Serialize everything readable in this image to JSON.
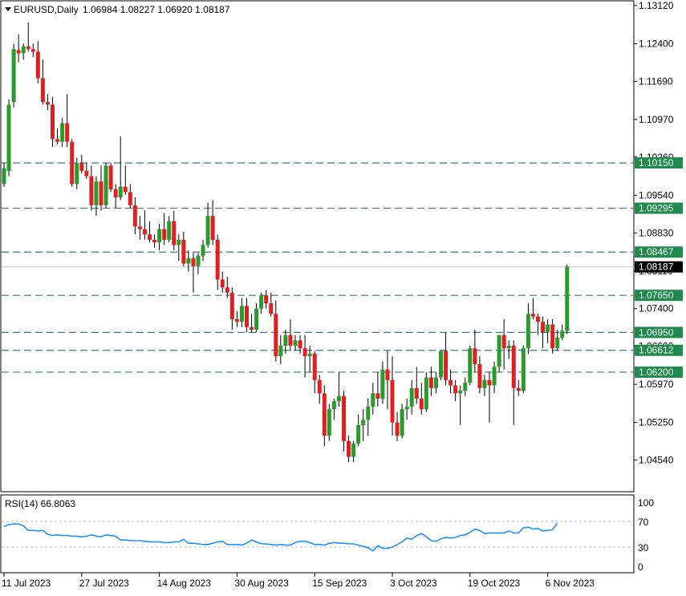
{
  "header": {
    "symbol": "EURUSD,Daily",
    "ohlc": "1.06984 1.08227 1.06920 1.08187"
  },
  "rsi": {
    "label": "RSI(14) 66.8063",
    "levels": [
      30,
      70
    ],
    "scale_labels": [
      "100",
      "70",
      "30",
      "0"
    ],
    "values": [
      62,
      65,
      66,
      66,
      63,
      56,
      56,
      55,
      56,
      50,
      48,
      49,
      48,
      48,
      47,
      47,
      46,
      47,
      49,
      47,
      46,
      49,
      48,
      47,
      41,
      41,
      40,
      40,
      40,
      39,
      38,
      38,
      38,
      37,
      37,
      38,
      38,
      42,
      36,
      36,
      35,
      34,
      34,
      36,
      38,
      39,
      34,
      34,
      34,
      33,
      36,
      41,
      38,
      35,
      35,
      34,
      33,
      34,
      33,
      33,
      37,
      39,
      39,
      37,
      34,
      34,
      33,
      36,
      37,
      36,
      36,
      35,
      35,
      33,
      31,
      29,
      24,
      32,
      28,
      28,
      30,
      34,
      38,
      44,
      42,
      48,
      51,
      46,
      40,
      39,
      43,
      45,
      44,
      45,
      48,
      49,
      53,
      58,
      56,
      51,
      52,
      52,
      52,
      52,
      55,
      52,
      52,
      60,
      61,
      58,
      59,
      55,
      56,
      57,
      67
    ]
  },
  "colors": {
    "bull": "#2a9a2a",
    "bear": "#e02020",
    "wick": "#000000",
    "level_line": "#3d7a78",
    "level_label_bg": "#1f8a4c",
    "current_price_bg": "#000000",
    "rsi_line": "#1e90ff",
    "grid_border": "#000000"
  },
  "chart_data": {
    "type": "candlestick",
    "symbol": "EURUSD",
    "timeframe": "Daily",
    "price_axis": {
      "ylim": [
        1.0423,
        1.1312
      ],
      "ticks": [
        "1.13120",
        "1.12400",
        "1.11690",
        "1.10970",
        "1.10260",
        "1.09540",
        "1.08830",
        "1.08110",
        "1.07400",
        "1.06690",
        "1.05970",
        "1.05250",
        "1.04540"
      ]
    },
    "x_axis": {
      "ticks": [
        {
          "label": "11 Jul 2023",
          "index": 0
        },
        {
          "label": "27 Jul 2023",
          "index": 16
        },
        {
          "label": "14 Aug 2023",
          "index": 32
        },
        {
          "label": "30 Aug 2023",
          "index": 48
        },
        {
          "label": "15 Sep 2023",
          "index": 64
        },
        {
          "label": "3 Oct 2023",
          "index": 80
        },
        {
          "label": "19 Oct 2023",
          "index": 96
        },
        {
          "label": "6 Nov 2023",
          "index": 112
        }
      ]
    },
    "levels": [
      {
        "price": 1.1015,
        "label": "1.10150"
      },
      {
        "price": 1.09295,
        "label": "1.09295"
      },
      {
        "price": 1.08467,
        "label": "1.08467"
      },
      {
        "price": 1.0765,
        "label": "1.07650"
      },
      {
        "price": 1.0695,
        "label": "1.06950"
      },
      {
        "price": 1.06612,
        "label": "1.06612"
      },
      {
        "price": 1.062,
        "label": "1.06200"
      }
    ],
    "current_price": {
      "price": 1.08187,
      "label": "1.08187"
    },
    "candles": [
      [
        1.0975,
        1.1015,
        1.097,
        1.1005
      ],
      [
        1.1,
        1.1135,
        1.099,
        1.1125
      ],
      [
        1.113,
        1.124,
        1.112,
        1.123
      ],
      [
        1.1228,
        1.1258,
        1.1205,
        1.1222
      ],
      [
        1.1222,
        1.124,
        1.121,
        1.1235
      ],
      [
        1.1235,
        1.128,
        1.1225,
        1.123
      ],
      [
        1.123,
        1.124,
        1.1215,
        1.1225
      ],
      [
        1.1225,
        1.1245,
        1.1165,
        1.1175
      ],
      [
        1.1175,
        1.121,
        1.1125,
        1.113
      ],
      [
        1.113,
        1.1145,
        1.1115,
        1.1125
      ],
      [
        1.1125,
        1.114,
        1.1045,
        1.106
      ],
      [
        1.106,
        1.108,
        1.105,
        1.1055
      ],
      [
        1.1055,
        1.11,
        1.1045,
        1.109
      ],
      [
        1.109,
        1.1145,
        1.1045,
        1.1055
      ],
      [
        1.1055,
        1.106,
        1.097,
        1.0975
      ],
      [
        1.0975,
        1.1025,
        1.0965,
        1.1015
      ],
      [
        1.1015,
        1.103,
        1.0995,
        1.1
      ],
      [
        1.1,
        1.1015,
        1.0985,
        1.099
      ],
      [
        1.099,
        1.101,
        1.0925,
        1.0935
      ],
      [
        1.0935,
        1.099,
        1.0915,
        1.098
      ],
      [
        1.098,
        1.101,
        1.0925,
        1.0935
      ],
      [
        1.0935,
        1.1015,
        1.093,
        1.101
      ],
      [
        1.101,
        1.1015,
        1.096,
        1.0965
      ],
      [
        1.0965,
        1.0975,
        1.093,
        1.095
      ],
      [
        1.095,
        1.1065,
        1.0945,
        1.097
      ],
      [
        1.097,
        1.101,
        1.0955,
        1.096
      ],
      [
        1.096,
        1.0975,
        1.093,
        1.0935
      ],
      [
        1.0935,
        1.095,
        1.088,
        1.0895
      ],
      [
        1.0895,
        1.0915,
        1.087,
        1.089
      ],
      [
        1.089,
        1.0925,
        1.087,
        1.088
      ],
      [
        1.088,
        1.0905,
        1.0865,
        1.087
      ],
      [
        1.087,
        1.088,
        1.0855,
        1.0865
      ],
      [
        1.0865,
        1.09,
        1.085,
        1.089
      ],
      [
        1.089,
        1.092,
        1.086,
        1.087
      ],
      [
        1.087,
        1.0915,
        1.0865,
        1.0905
      ],
      [
        1.0905,
        1.0925,
        1.085,
        1.086
      ],
      [
        1.086,
        1.088,
        1.083,
        1.087
      ],
      [
        1.087,
        1.0885,
        1.082,
        1.0825
      ],
      [
        1.0825,
        1.085,
        1.081,
        1.0835
      ],
      [
        1.0835,
        1.0845,
        1.077,
        1.082
      ],
      [
        1.082,
        1.0845,
        1.0805,
        1.084
      ],
      [
        1.084,
        1.087,
        1.083,
        1.086
      ],
      [
        1.086,
        1.094,
        1.0855,
        1.0915
      ],
      [
        1.0915,
        1.0945,
        1.086,
        1.087
      ],
      [
        1.087,
        1.088,
        1.0775,
        1.0795
      ],
      [
        1.0795,
        1.081,
        1.077,
        1.078
      ],
      [
        1.078,
        1.08,
        1.076,
        1.077
      ],
      [
        1.077,
        1.078,
        1.07,
        1.072
      ],
      [
        1.072,
        1.0735,
        1.0705,
        1.0715
      ],
      [
        1.0715,
        1.076,
        1.0705,
        1.0745
      ],
      [
        1.0745,
        1.076,
        1.0695,
        1.0705
      ],
      [
        1.0705,
        1.073,
        1.0695,
        1.07
      ],
      [
        1.07,
        1.075,
        1.0695,
        1.074
      ],
      [
        1.074,
        1.077,
        1.073,
        1.0765
      ],
      [
        1.0765,
        1.0775,
        1.074,
        1.075
      ],
      [
        1.075,
        1.077,
        1.0725,
        1.073
      ],
      [
        1.073,
        1.0755,
        1.064,
        1.065
      ],
      [
        1.065,
        1.069,
        1.0635,
        1.067
      ],
      [
        1.067,
        1.07,
        1.0655,
        1.069
      ],
      [
        1.069,
        1.072,
        1.066,
        1.067
      ],
      [
        1.067,
        1.069,
        1.066,
        1.068
      ],
      [
        1.068,
        1.069,
        1.0655,
        1.0665
      ],
      [
        1.0665,
        1.069,
        1.061,
        1.065
      ],
      [
        1.065,
        1.067,
        1.062,
        1.0655
      ],
      [
        1.0655,
        1.066,
        1.058,
        1.0605
      ],
      [
        1.0605,
        1.0615,
        1.056,
        1.058
      ],
      [
        1.058,
        1.0595,
        1.048,
        1.05
      ],
      [
        1.05,
        1.056,
        1.049,
        1.055
      ],
      [
        1.055,
        1.057,
        1.053,
        1.0565
      ],
      [
        1.0565,
        1.062,
        1.0555,
        1.0575
      ],
      [
        1.0575,
        1.0585,
        1.047,
        1.049
      ],
      [
        1.049,
        1.05,
        1.045,
        1.046
      ],
      [
        1.046,
        1.049,
        1.045,
        1.0485
      ],
      [
        1.0485,
        1.054,
        1.048,
        1.052
      ],
      [
        1.052,
        1.055,
        1.049,
        1.053
      ],
      [
        1.053,
        1.057,
        1.05,
        1.0555
      ],
      [
        1.0555,
        1.06,
        1.054,
        1.058
      ],
      [
        1.058,
        1.062,
        1.0555,
        1.057
      ],
      [
        1.057,
        1.064,
        1.056,
        1.0625
      ],
      [
        1.0625,
        1.066,
        1.055,
        1.0605
      ],
      [
        1.0605,
        1.065,
        1.05,
        1.0525
      ],
      [
        1.0525,
        1.0545,
        1.049,
        1.05
      ],
      [
        1.05,
        1.056,
        1.0495,
        1.055
      ],
      [
        1.055,
        1.057,
        1.053,
        1.0555
      ],
      [
        1.0555,
        1.0605,
        1.054,
        1.059
      ],
      [
        1.059,
        1.063,
        1.056,
        1.057
      ],
      [
        1.057,
        1.06,
        1.054,
        1.055
      ],
      [
        1.055,
        1.062,
        1.0545,
        1.061
      ],
      [
        1.061,
        1.063,
        1.0575,
        1.059
      ],
      [
        1.059,
        1.062,
        1.058,
        1.061
      ],
      [
        1.061,
        1.066,
        1.0605,
        1.066
      ],
      [
        1.066,
        1.0695,
        1.0595,
        1.0605
      ],
      [
        1.0605,
        1.0625,
        1.058,
        1.0595
      ],
      [
        1.0595,
        1.0605,
        1.0565,
        1.058
      ],
      [
        1.058,
        1.0595,
        1.052,
        1.0585
      ],
      [
        1.0585,
        1.061,
        1.0575,
        1.06
      ],
      [
        1.06,
        1.067,
        1.0595,
        1.0665
      ],
      [
        1.0665,
        1.07,
        1.062,
        1.0635
      ],
      [
        1.0635,
        1.065,
        1.058,
        1.059
      ],
      [
        1.059,
        1.0615,
        1.0575,
        1.0605
      ],
      [
        1.0605,
        1.062,
        1.0525,
        1.0595
      ],
      [
        1.0595,
        1.064,
        1.058,
        1.063
      ],
      [
        1.063,
        1.069,
        1.062,
        1.069
      ],
      [
        1.069,
        1.072,
        1.0625,
        1.0665
      ],
      [
        1.0665,
        1.068,
        1.0645,
        1.067
      ],
      [
        1.067,
        1.068,
        1.052,
        1.059
      ],
      [
        1.059,
        1.0605,
        1.0575,
        1.0585
      ],
      [
        1.0585,
        1.067,
        1.058,
        1.0665
      ],
      [
        1.0665,
        1.075,
        1.0655,
        1.073
      ],
      [
        1.073,
        1.076,
        1.072,
        1.0725
      ],
      [
        1.0725,
        1.073,
        1.069,
        1.0715
      ],
      [
        1.0715,
        1.0725,
        1.0665,
        1.0695
      ],
      [
        1.0695,
        1.072,
        1.0675,
        1.071
      ],
      [
        1.071,
        1.072,
        1.0655,
        1.0665
      ],
      [
        1.0665,
        1.07,
        1.066,
        1.0685
      ],
      [
        1.0685,
        1.071,
        1.068,
        1.0698
      ],
      [
        1.0698,
        1.0823,
        1.0692,
        1.0819
      ]
    ]
  }
}
